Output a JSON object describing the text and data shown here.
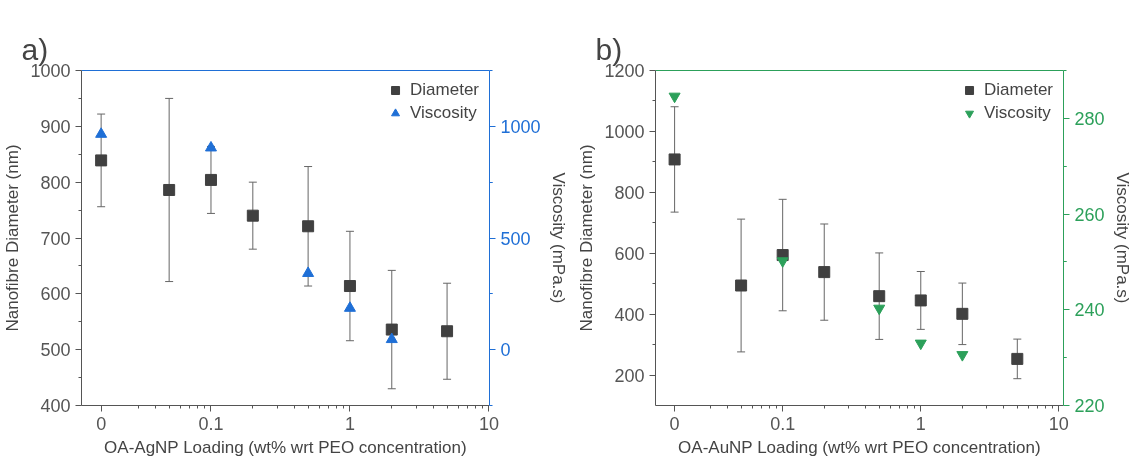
{
  "chart_data": [
    {
      "type": "scatter",
      "title": "a)",
      "xlabel": "OA-AgNP Loading (wt% wrt PEO concentration)",
      "ylabel": "Nanofibre Diameter (nm)",
      "y2label": "Viscosity (mPa.s)",
      "log": "x",
      "xlim": [
        0.0117,
        10.1
      ],
      "xticks": [
        {
          "value": 0.0162,
          "label": "0"
        },
        0.1,
        1,
        10
      ],
      "ylim": [
        400,
        1000
      ],
      "yticks": [
        400,
        500,
        600,
        700,
        800,
        900,
        1000
      ],
      "y2lim": [
        -250,
        1250
      ],
      "y2ticks": [
        0,
        500,
        1000
      ],
      "grid": false,
      "legend": "top right",
      "series": [
        {
          "name": "Diameter",
          "color": "#404040",
          "marker": "square",
          "x": [
            0.0162,
            0.05,
            0.1,
            0.2,
            0.5,
            1,
            2,
            5
          ],
          "values": [
            839,
            786,
            804,
            740,
            721,
            614,
            536,
            533
          ],
          "errors": [
            83,
            164,
            60,
            60,
            107,
            98,
            106,
            86
          ]
        },
        {
          "name": "Viscosity",
          "color": "#1f6fd6",
          "marker": "triangle",
          "axis": "y2",
          "x": [
            0.0162,
            0.1,
            0.5,
            1,
            2
          ],
          "values": [
            965,
            904,
            342,
            186,
            46
          ]
        }
      ]
    },
    {
      "type": "scatter",
      "title": "b)",
      "xlabel": "OA-AuNP Loading (wt% wrt PEO concentration)",
      "ylabel": "Nanofibre Diameter (nm)",
      "y2label": "Viscosity (mPa.s)",
      "log": "x",
      "xlim": [
        0.012,
        10.8
      ],
      "xticks": [
        {
          "value": 0.0165,
          "label": "0"
        },
        0.1,
        1,
        10
      ],
      "ylim": [
        100,
        1200
      ],
      "yticks": [
        200,
        400,
        600,
        800,
        1000,
        1200
      ],
      "y2lim": [
        220,
        290
      ],
      "y2ticks": [
        220,
        240,
        260,
        280
      ],
      "grid": false,
      "legend": "top right",
      "series": [
        {
          "name": "Diameter",
          "color": "#404040",
          "marker": "square",
          "x": [
            0.0165,
            0.05,
            0.1,
            0.2,
            0.5,
            1,
            2,
            5
          ],
          "values": [
            908,
            494,
            594,
            538,
            459,
            445,
            401,
            253
          ],
          "errors": [
            173,
            218,
            183,
            158,
            142,
            95,
            101,
            65
          ]
        },
        {
          "name": "Viscosity",
          "color": "#2ca05a",
          "axis": "y2",
          "x": [
            0.0165,
            0.1,
            0.5,
            1,
            2
          ],
          "values": [
            284.6,
            250.2,
            240.3,
            233.0,
            230.6
          ]
        }
      ]
    }
  ]
}
